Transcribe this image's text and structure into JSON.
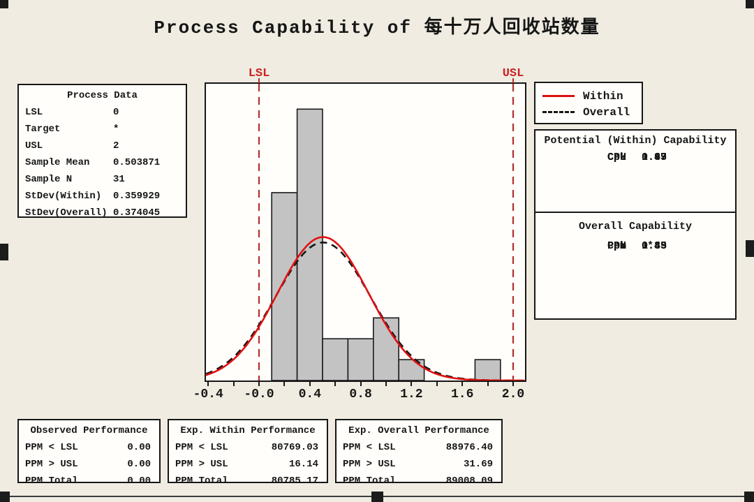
{
  "title": "Process Capability of 每十万人回收站数量",
  "process_data": {
    "title": "Process Data",
    "rows": [
      {
        "label": "LSL",
        "value": "0"
      },
      {
        "label": "Target",
        "value": "*"
      },
      {
        "label": "USL",
        "value": "2"
      },
      {
        "label": "Sample Mean",
        "value": "0.503871"
      },
      {
        "label": "Sample N",
        "value": "31"
      },
      {
        "label": "StDev(Within)",
        "value": "0.359929"
      },
      {
        "label": "StDev(Overall)",
        "value": "0.374045"
      }
    ]
  },
  "legend": {
    "within_label": "Within",
    "overall_label": "Overall",
    "within_color": "#dd1111",
    "overall_color": "#161616"
  },
  "potential_capability": {
    "title": "Potential (Within) Capability",
    "rows": [
      {
        "label": "Cp",
        "value": "0.93"
      },
      {
        "label": "CPL",
        "value": "0.47"
      },
      {
        "label": "CPU",
        "value": "1.39"
      },
      {
        "label": "Cpk",
        "value": "0.47"
      }
    ]
  },
  "overall_capability": {
    "title": "Overall Capability",
    "rows": [
      {
        "label": "Pp",
        "value": "0.89"
      },
      {
        "label": "PPL",
        "value": "0.45"
      },
      {
        "label": "PPU",
        "value": "1.33"
      },
      {
        "label": "Ppk",
        "value": "0.45"
      },
      {
        "label": "Cpm",
        "value": "*"
      }
    ]
  },
  "observed_performance": {
    "title": "Observed Performance",
    "rows": [
      {
        "label": "PPM < LSL",
        "value": "0.00"
      },
      {
        "label": "PPM > USL",
        "value": "0.00"
      },
      {
        "label": "PPM Total",
        "value": "0.00"
      }
    ]
  },
  "exp_within_performance": {
    "title": "Exp. Within Performance",
    "rows": [
      {
        "label": "PPM < LSL",
        "value": "80769.03"
      },
      {
        "label": "PPM > USL",
        "value": "16.14"
      },
      {
        "label": "PPM Total",
        "value": "80785.17"
      }
    ]
  },
  "exp_overall_performance": {
    "title": "Exp. Overall Performance",
    "rows": [
      {
        "label": "PPM < LSL",
        "value": "88976.40"
      },
      {
        "label": "PPM > USL",
        "value": "31.69"
      },
      {
        "label": "PPM Total",
        "value": "89008.09"
      }
    ]
  },
  "chart_data": {
    "type": "bar",
    "subtype": "histogram-with-normal-curves",
    "title": "Process Capability of 每十万人回收站数量",
    "bin_start": 0.1,
    "bin_width": 0.2,
    "categories_bin_ranges": [
      "0.1-0.3",
      "0.3-0.5",
      "0.5-0.7",
      "0.7-0.9",
      "0.9-1.1",
      "1.1-1.3",
      "1.3-1.5",
      "1.5-1.7",
      "1.7-1.9"
    ],
    "frequencies": [
      9,
      13,
      2,
      2,
      3,
      1,
      0,
      0,
      1
    ],
    "sample_n": 31,
    "mean": 0.503871,
    "stdev_within": 0.359929,
    "stdev_overall": 0.374045,
    "lsl": 0,
    "usl": 2,
    "lsl_label": "LSL",
    "usl_label": "USL",
    "xlim": [
      -0.4176,
      2.093
    ],
    "ylim_counts": [
      0,
      14.2
    ],
    "x_ticks": [
      {
        "label": "-0.4",
        "value": -0.4
      },
      {
        "label": "-0.0",
        "value": 0.0
      },
      {
        "label": "0.4",
        "value": 0.4
      },
      {
        "label": "0.8",
        "value": 0.8
      },
      {
        "label": "1.2",
        "value": 1.2
      },
      {
        "label": "1.6",
        "value": 1.6
      },
      {
        "label": "2.0",
        "value": 2.0
      }
    ],
    "minor_tick_step": 0.2,
    "curves": [
      {
        "name": "Within",
        "stdev": 0.359929,
        "color": "#e01212",
        "dash": ""
      },
      {
        "name": "Overall",
        "stdev": 0.374045,
        "color": "#161616",
        "dash": "10 7"
      }
    ],
    "bar_fill": "#c3c3c3",
    "bar_stroke": "#1a1a1a",
    "spec_line_color": "#b23030",
    "grid": false,
    "legend_position": "top-right"
  }
}
